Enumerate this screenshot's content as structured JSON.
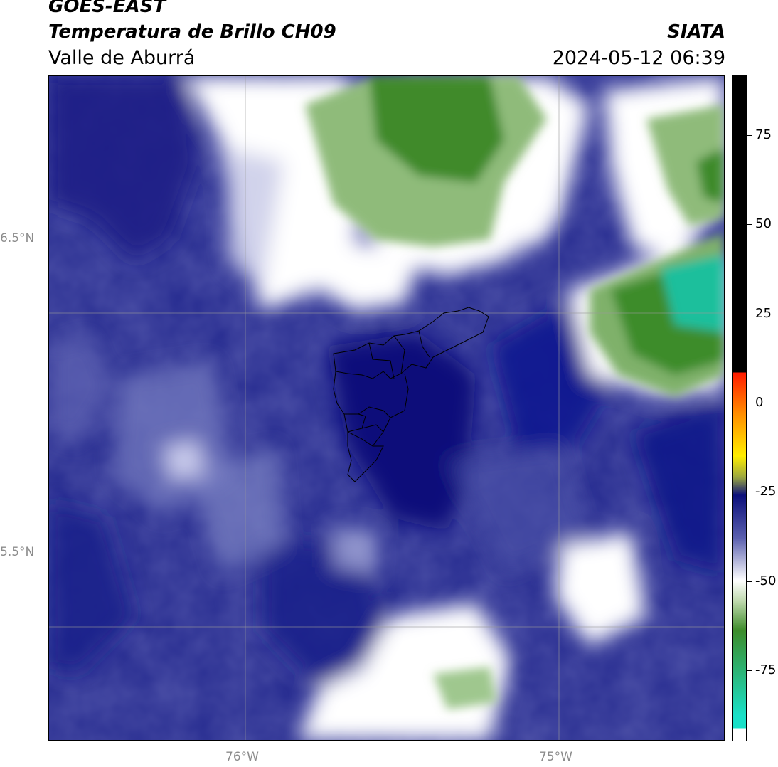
{
  "header": {
    "line1": "GOES-EAST",
    "line2": "Temperatura de Brillo CH09",
    "line3": "Valle de Aburrá",
    "organization": "SIATA",
    "timestamp": "2024-05-12 06:39"
  },
  "map": {
    "grid_lines": true,
    "lon_ticks": [
      {
        "value": -76,
        "label": "76°W"
      },
      {
        "value": -75,
        "label": "75°W"
      }
    ],
    "lat_ticks": [
      {
        "value": 6.5,
        "label": "6.5°N"
      },
      {
        "value": 5.5,
        "label": "5.5°N"
      }
    ],
    "overlay": "Valle de Aburrá municipal boundaries (black outline)"
  },
  "colorbar": {
    "ticks": [
      {
        "value": 75,
        "label": "75"
      },
      {
        "value": 50,
        "label": "50"
      },
      {
        "value": 25,
        "label": "25"
      },
      {
        "value": 0,
        "label": "0"
      },
      {
        "value": -25,
        "label": "-25"
      },
      {
        "value": -50,
        "label": "-50"
      },
      {
        "value": -75,
        "label": "-75"
      }
    ],
    "range": [
      -95,
      92
    ],
    "colors": {
      "cyan": "#19e0c8",
      "green": "#3d8c2a",
      "white": "#ffffff",
      "navy": "#0b0f7a",
      "yellow": "#ffee00",
      "orange": "#ff8c00",
      "red": "#ff1a00",
      "black": "#000000"
    }
  }
}
